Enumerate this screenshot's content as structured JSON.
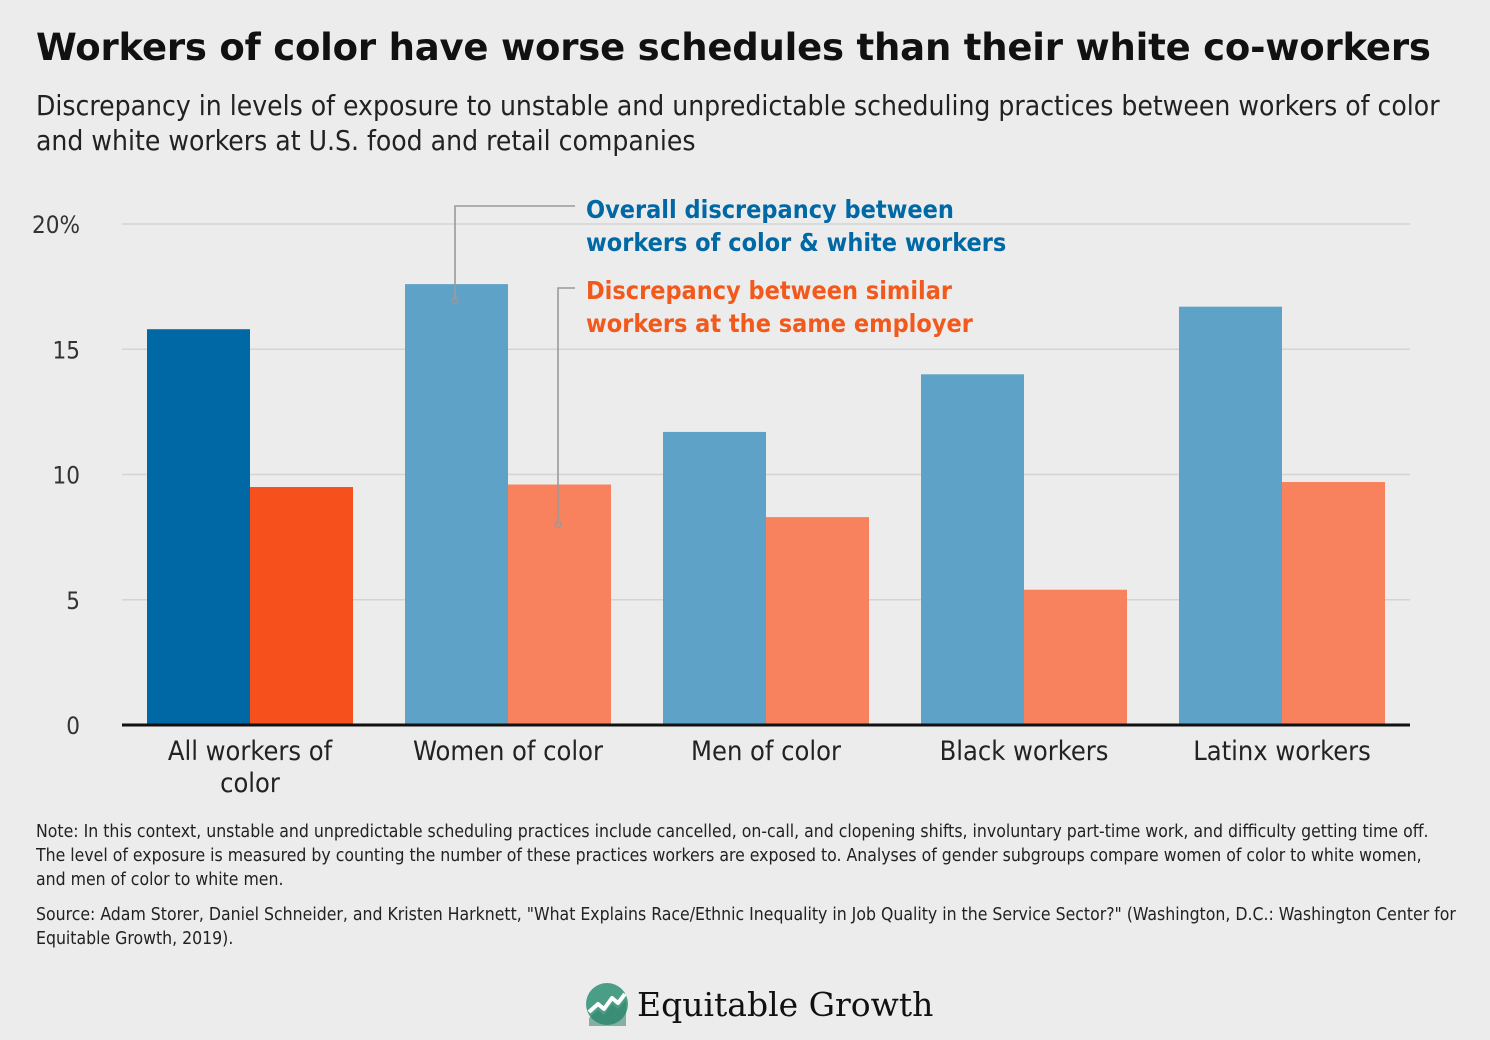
{
  "title": "Workers of color have worse schedules than their white co-workers",
  "subtitle": "Discrepancy in levels of exposure to unstable and unpredictable scheduling practices between workers of color and white workers at U.S. food and retail companies",
  "note": "Note: In this context, unstable and unpredictable scheduling practices include cancelled, on-call, and clopening shifts, involuntary part-time work, and difficulty getting time off. The level of exposure is measured by counting the number of these practices workers are exposed to. Analyses of gender subgroups compare women of color to white women, and men of color to white men.",
  "source": "Source: Adam Storer, Daniel Schneider, and Kristen Harknett, \"What Explains Race/Ethnic Inequality in Job Quality in the Service Sector?\" (Washington, D.C.: Washington Center for Equitable Growth, 2019).",
  "logo": {
    "text": "Equitable Growth",
    "mark": "growth-chart-logo-icon"
  },
  "chart_data": {
    "type": "bar",
    "categories": [
      [
        "All workers of",
        "color"
      ],
      [
        "Women of color"
      ],
      [
        "Men of color"
      ],
      [
        "Black workers"
      ],
      [
        "Latinx workers"
      ]
    ],
    "series": [
      {
        "name": "Overall discrepancy between workers of color & white workers",
        "name_lines": [
          "Overall discrepancy between",
          "workers of color & white workers"
        ],
        "values": [
          15.8,
          17.6,
          11.7,
          14.0,
          16.7
        ],
        "color": "#5ea2c8",
        "highlight_color": "#0068a4"
      },
      {
        "name": "Discrepancy between similar workers at the same employer",
        "name_lines": [
          "Discrepancy between similar",
          "workers at the same employer"
        ],
        "values": [
          9.5,
          9.6,
          8.3,
          5.4,
          9.7
        ],
        "color": "#f8825e",
        "highlight_color": "#f6511d"
      }
    ],
    "highlight_index": 0,
    "ylim": [
      0,
      20
    ],
    "y_ticks": [
      "0",
      "5",
      "10",
      "15",
      "20%"
    ],
    "y_tick_values": [
      0,
      5,
      10,
      15,
      20
    ],
    "legend_placement": "annotation-callouts",
    "label_colors": {
      "series_0": "#0068a4",
      "series_1": "#f25a1d"
    },
    "grid": true,
    "grid_color": "#d4d4d4",
    "axis_color": "#111111"
  }
}
